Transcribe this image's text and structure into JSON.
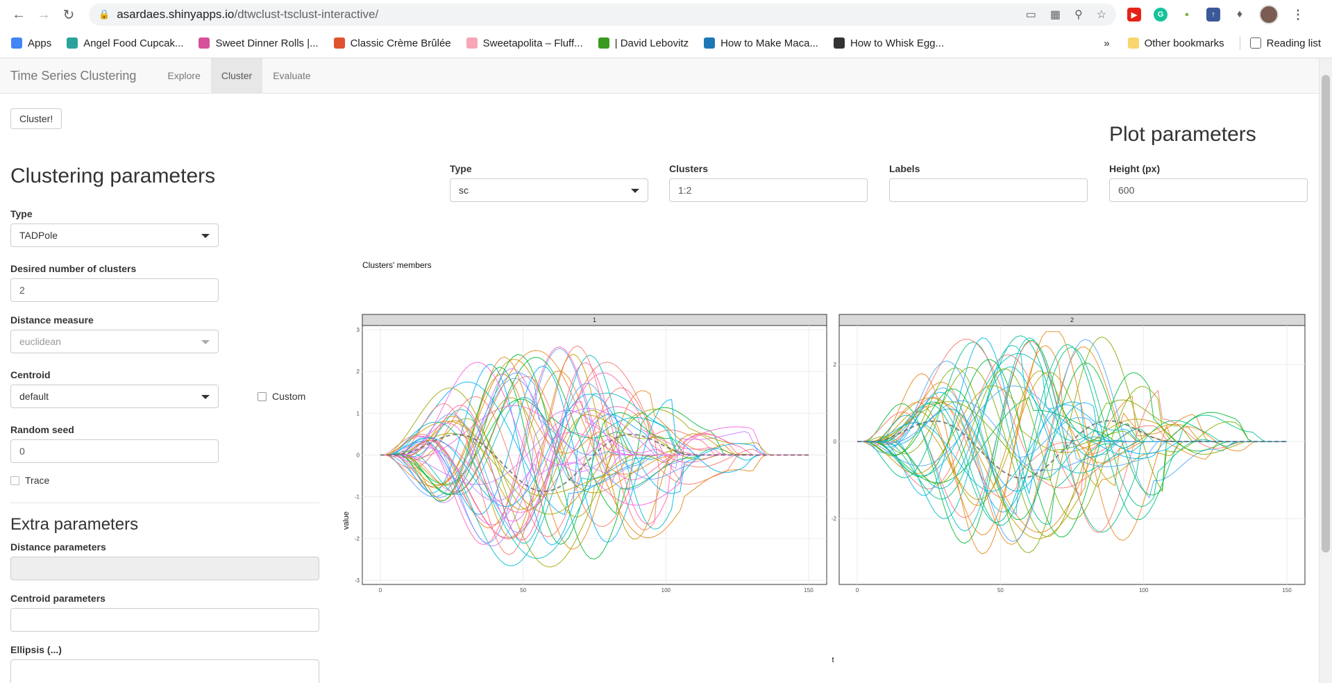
{
  "browser": {
    "url_host": "asardaes.shinyapps.io",
    "url_path": "/dtwclust-tsclust-interactive/",
    "bookmarks": [
      {
        "label": "Apps",
        "color": "#4285f4"
      },
      {
        "label": "Angel Food Cupcak...",
        "color": "#2aa39a"
      },
      {
        "label": "Sweet Dinner Rolls |...",
        "color": "#d6509a"
      },
      {
        "label": "Classic Crème Brûlée",
        "color": "#e0522f"
      },
      {
        "label": "Sweetapolita – Fluff...",
        "color": "#f7a6b8"
      },
      {
        "label": "| David Lebovitz",
        "color": "#3a9a20"
      },
      {
        "label": "How to Make Maca...",
        "color": "#1e77b4"
      },
      {
        "label": "How to Whisk Egg...",
        "color": "#333333"
      }
    ],
    "overflow": "»",
    "other_bookmarks": "Other bookmarks",
    "reading_list": "Reading list"
  },
  "navbar": {
    "brand": "Time Series Clustering",
    "tabs": [
      "Explore",
      "Cluster",
      "Evaluate"
    ],
    "active_tab": "Cluster"
  },
  "cluster_button": "Cluster!",
  "clustering": {
    "heading": "Clustering parameters",
    "type_label": "Type",
    "type_value": "TADPole",
    "k_label": "Desired number of clusters",
    "k_value": "2",
    "distance_label": "Distance measure",
    "distance_value": "euclidean",
    "centroid_label": "Centroid",
    "centroid_value": "default",
    "custom_label": "Custom",
    "seed_label": "Random seed",
    "seed_value": "0",
    "trace_label": "Trace"
  },
  "extra": {
    "heading": "Extra parameters",
    "distance_params_label": "Distance parameters",
    "centroid_params_label": "Centroid parameters",
    "ellipsis_label": "Ellipsis (...)"
  },
  "plot_params": {
    "heading": "Plot parameters",
    "type_label": "Type",
    "type_value": "sc",
    "clusters_label": "Clusters",
    "clusters_value": "1:2",
    "labels_label": "Labels",
    "labels_value": "",
    "height_label": "Height (px)",
    "height_value": "600"
  },
  "chart_data": {
    "type": "line",
    "title": "Clusters' members",
    "xlabel": "t",
    "ylabel": "value",
    "panels": [
      {
        "name": "1",
        "xlim": [
          0,
          150
        ],
        "ylim": [
          -3,
          3
        ],
        "x_ticks": [
          0,
          50,
          100,
          150
        ],
        "y_ticks": [
          -3,
          -2,
          -1,
          0,
          1,
          2,
          3
        ],
        "n_series": 44,
        "colors": [
          "#f8766d",
          "#e7861b",
          "#c49a00",
          "#a3a500",
          "#00ba38",
          "#00bfc4",
          "#00b0f6",
          "#619cff",
          "#c77cff",
          "#f564e3",
          "#ff64b0"
        ]
      },
      {
        "name": "2",
        "xlim": [
          0,
          150
        ],
        "ylim": [
          -3.6,
          2.9
        ],
        "x_ticks": [
          0,
          50,
          100,
          150
        ],
        "y_ticks": [
          -2,
          0,
          2
        ],
        "n_series": 36,
        "colors": [
          "#f8766d",
          "#e7861b",
          "#c49a00",
          "#7cae00",
          "#00ba38",
          "#00c08b",
          "#00bfc4",
          "#00b4f0",
          "#4ea7f7"
        ]
      }
    ],
    "grid": true
  }
}
